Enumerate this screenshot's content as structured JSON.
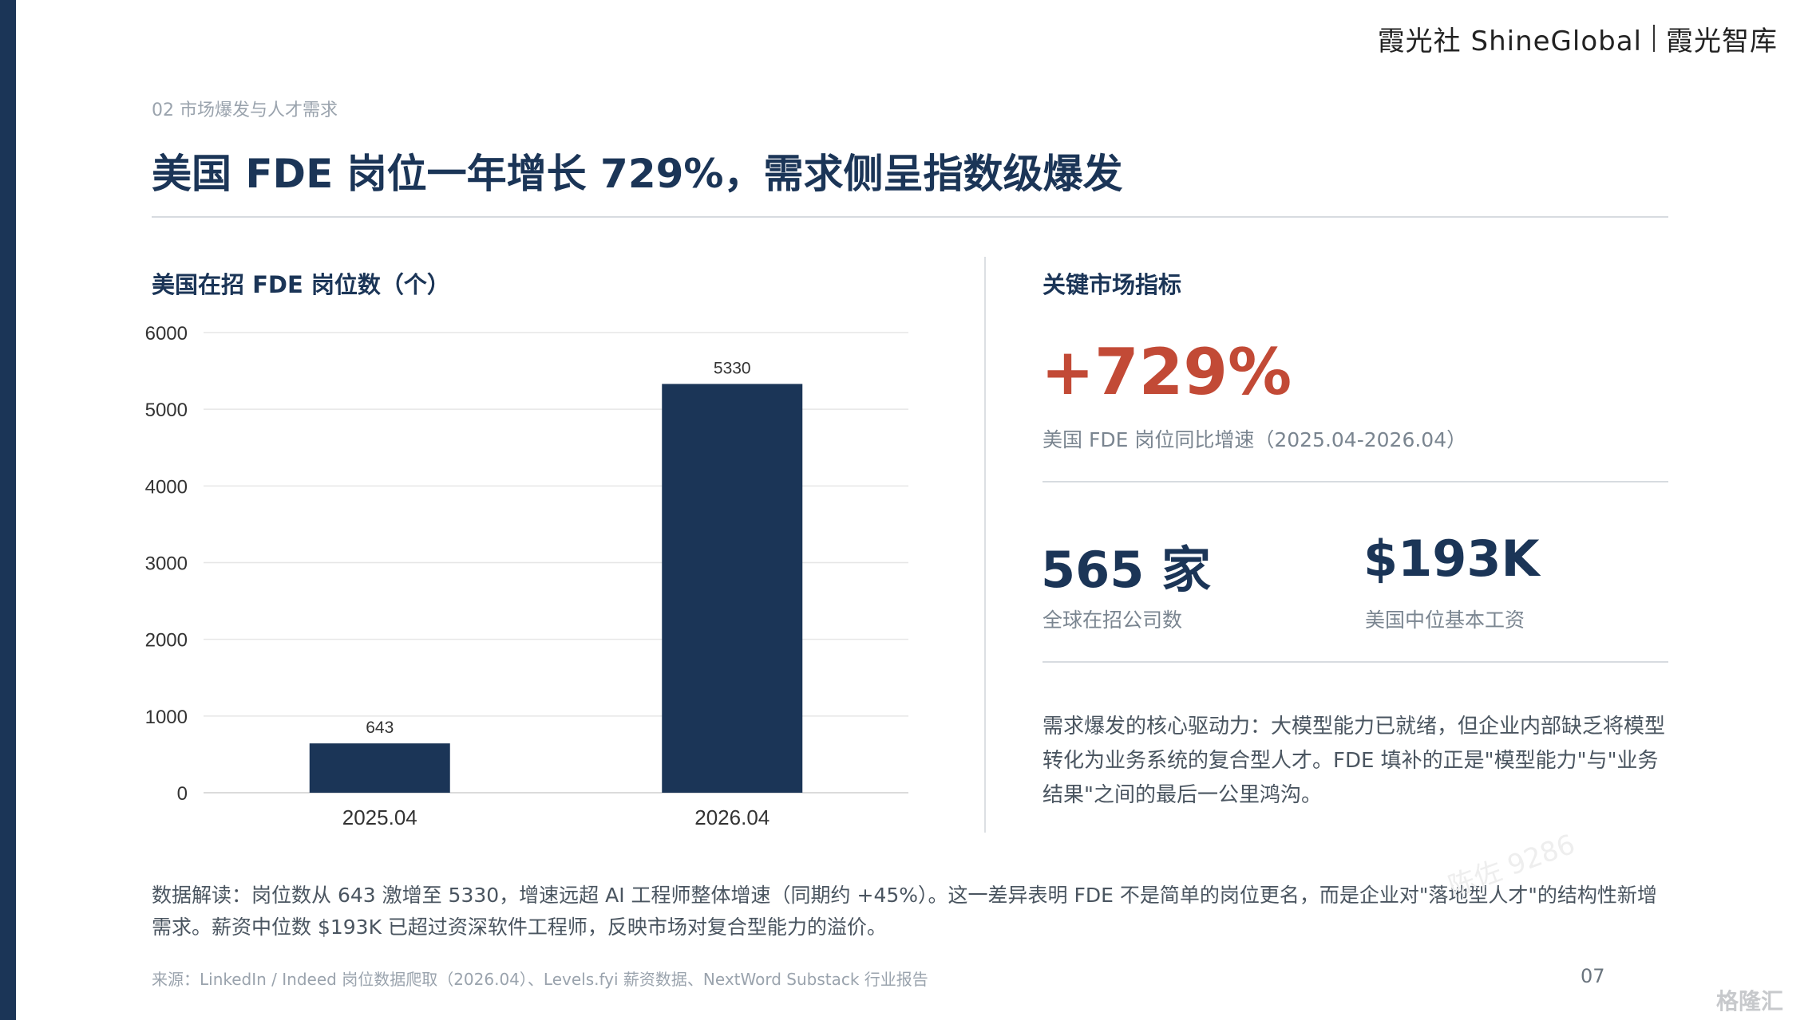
{
  "brand": {
    "left": "霞光社 ShineGlobal",
    "right": "霞光智库"
  },
  "section_label": "02 市场爆发与人才需求",
  "page_title": "美国 FDE 岗位一年增长 729%，需求侧呈指数级爆发",
  "chart_heading": "美国在招 FDE 岗位数（个）",
  "chart_data": {
    "type": "bar",
    "categories": [
      "2025.04",
      "2026.04"
    ],
    "values": [
      643,
      5330
    ],
    "data_labels": [
      "643",
      "5330"
    ],
    "yticks": [
      "0",
      "1000",
      "2000",
      "3000",
      "4000",
      "5000",
      "6000"
    ],
    "ylim": [
      0,
      6000
    ],
    "grid": true,
    "bar_color": "#1b3557"
  },
  "metrics": {
    "heading": "关键市场指标",
    "growth_value": "+729%",
    "growth_caption": "美国 FDE 岗位同比增速（2025.04-2026.04）",
    "companies_value": "565 家",
    "companies_caption": "全球在招公司数",
    "salary_value": "$193K",
    "salary_caption": "美国中位基本工资",
    "driver_text": "需求爆发的核心驱动力：大模型能力已就绪，但企业内部缺乏将模型转化为业务系统的复合型人才。FDE 填补的正是\"模型能力\"与\"业务结果\"之间的最后一公里鸿沟。"
  },
  "interpretation": "数据解读：岗位数从 643 激增至 5330，增速远超 AI 工程师整体增速（同期约 +45%）。这一差异表明 FDE 不是简单的岗位更名，而是企业对\"落地型人才\"的结构性新增需求。薪资中位数 $193K 已超过资深软件工程师，反映市场对复合型能力的溢价。",
  "source": "来源：LinkedIn / Indeed 岗位数据爬取（2026.04）、Levels.fyi 薪资数据、NextWord Substack 行业报告",
  "page_number": "07",
  "watermarks": {
    "corner": "格隆汇",
    "diagonal": "陈佐 9286"
  },
  "colors": {
    "accent_navy": "#1b3557",
    "accent_red": "#c24a36",
    "left_band": "#1b3557"
  }
}
